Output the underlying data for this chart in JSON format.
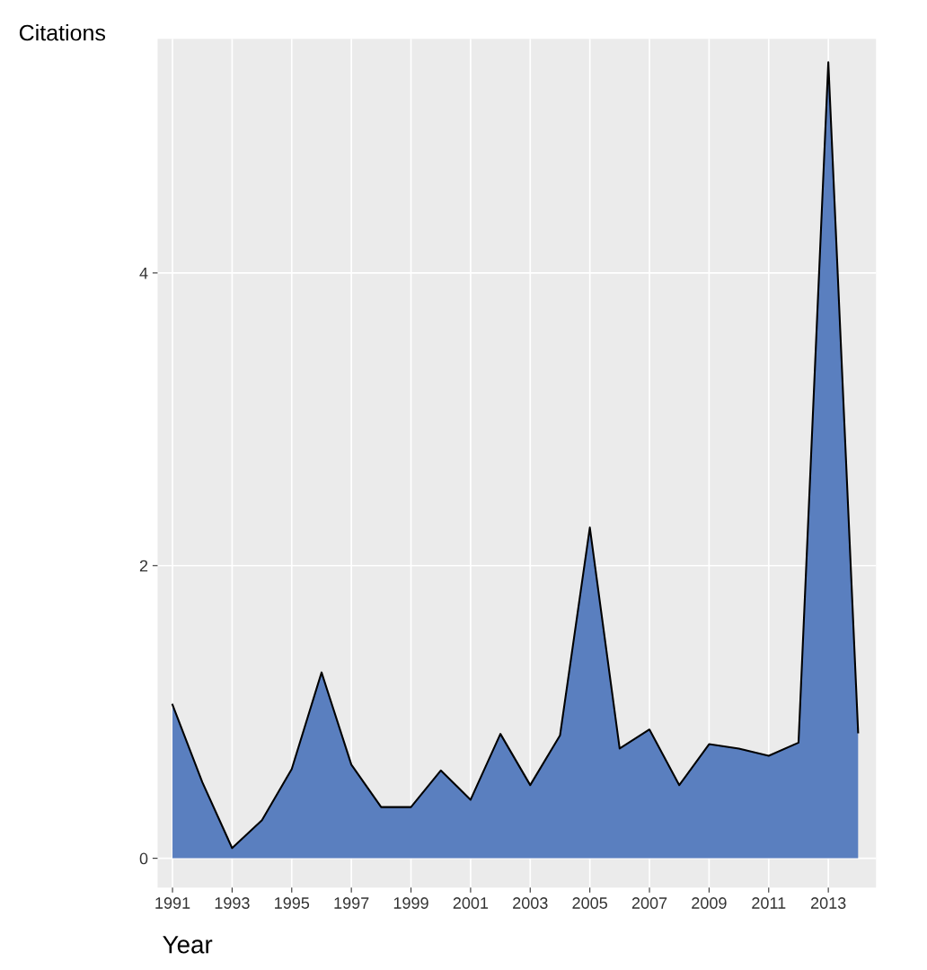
{
  "chart_data": {
    "type": "area",
    "xlabel": "Year",
    "ylabel": "Citations",
    "x": [
      1991,
      1992,
      1993,
      1994,
      1995,
      1996,
      1997,
      1998,
      1999,
      2000,
      2001,
      2002,
      2003,
      2004,
      2005,
      2006,
      2007,
      2008,
      2009,
      2010,
      2011,
      2012,
      2013,
      2014
    ],
    "series": [
      {
        "color": "#5a7fbf",
        "values": [
          1.05,
          0.52,
          0.07,
          0.26,
          0.61,
          1.27,
          0.64,
          0.35,
          0.35,
          0.6,
          0.4,
          0.85,
          0.5,
          0.84,
          2.26,
          0.75,
          0.88,
          0.5,
          0.78,
          0.75,
          0.7,
          0.79,
          5.44,
          0.86
        ]
      }
    ],
    "xlim": [
      1990.5,
      2014.6
    ],
    "ylim": [
      -0.2,
      5.6
    ],
    "xticks": [
      1991,
      1993,
      1995,
      1997,
      1999,
      2001,
      2003,
      2005,
      2007,
      2009,
      2011,
      2013
    ],
    "yticks": [
      0,
      2,
      4
    ],
    "grid": true,
    "legend": false
  }
}
